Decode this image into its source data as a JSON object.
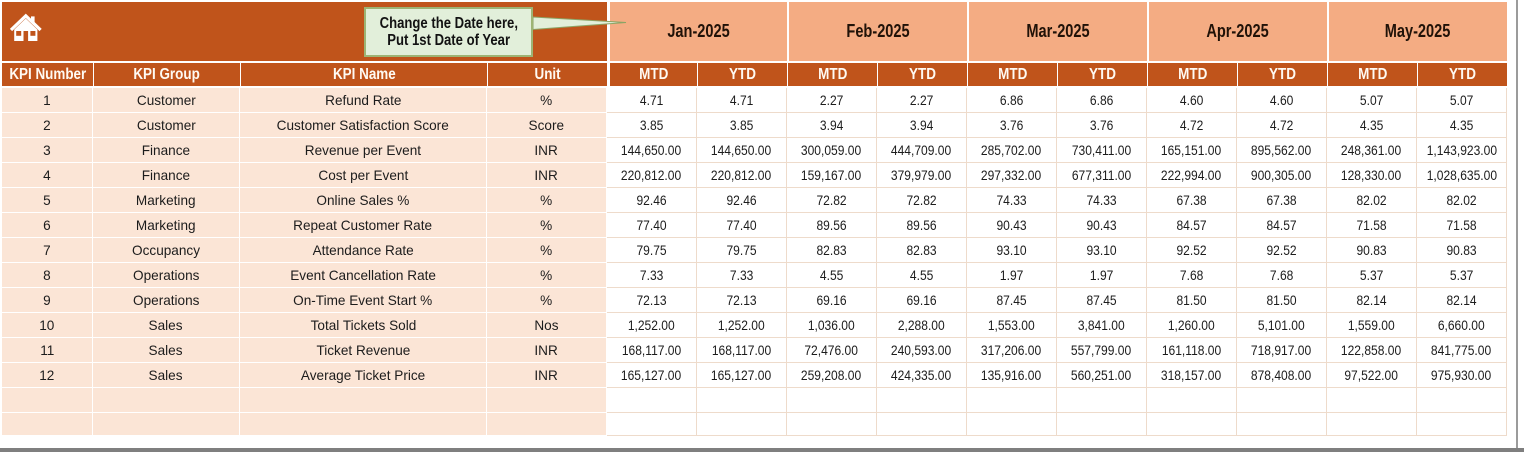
{
  "callout": {
    "line1": "Change the Date here,",
    "line2": "Put 1st Date of Year"
  },
  "header": {
    "kpi_number": "KPI Number",
    "kpi_group": "KPI Group",
    "kpi_name": "KPI Name",
    "unit": "Unit",
    "mtd": "MTD",
    "ytd": "YTD"
  },
  "months": [
    "Jan-2025",
    "Feb-2025",
    "Mar-2025",
    "Apr-2025",
    "May-2025"
  ],
  "icons": {
    "home": "home-icon"
  },
  "colors": {
    "dark_orange": "#C0541B",
    "salmon": "#F4AC83",
    "peach": "#FBE5D6",
    "callout_green": "#E2EFDA",
    "callout_border": "#9DB474",
    "grid_line": "#EEDBCB"
  },
  "rows": [
    {
      "number": "1",
      "group": "Customer",
      "name": "Refund Rate",
      "unit": "%",
      "values": [
        "4.71",
        "4.71",
        "2.27",
        "2.27",
        "6.86",
        "6.86",
        "4.60",
        "4.60",
        "5.07",
        "5.07"
      ]
    },
    {
      "number": "2",
      "group": "Customer",
      "name": "Customer Satisfaction Score",
      "unit": "Score",
      "values": [
        "3.85",
        "3.85",
        "3.94",
        "3.94",
        "3.76",
        "3.76",
        "4.72",
        "4.72",
        "4.35",
        "4.35"
      ]
    },
    {
      "number": "3",
      "group": "Finance",
      "name": "Revenue per Event",
      "unit": "INR",
      "values": [
        "144,650.00",
        "144,650.00",
        "300,059.00",
        "444,709.00",
        "285,702.00",
        "730,411.00",
        "165,151.00",
        "895,562.00",
        "248,361.00",
        "1,143,923.00"
      ]
    },
    {
      "number": "4",
      "group": "Finance",
      "name": "Cost per Event",
      "unit": "INR",
      "values": [
        "220,812.00",
        "220,812.00",
        "159,167.00",
        "379,979.00",
        "297,332.00",
        "677,311.00",
        "222,994.00",
        "900,305.00",
        "128,330.00",
        "1,028,635.00"
      ]
    },
    {
      "number": "5",
      "group": "Marketing",
      "name": "Online Sales %",
      "unit": "%",
      "values": [
        "92.46",
        "92.46",
        "72.82",
        "72.82",
        "74.33",
        "74.33",
        "67.38",
        "67.38",
        "82.02",
        "82.02"
      ]
    },
    {
      "number": "6",
      "group": "Marketing",
      "name": "Repeat Customer Rate",
      "unit": "%",
      "values": [
        "77.40",
        "77.40",
        "89.56",
        "89.56",
        "90.43",
        "90.43",
        "84.57",
        "84.57",
        "71.58",
        "71.58"
      ]
    },
    {
      "number": "7",
      "group": "Occupancy",
      "name": "Attendance Rate",
      "unit": "%",
      "values": [
        "79.75",
        "79.75",
        "82.83",
        "82.83",
        "93.10",
        "93.10",
        "92.52",
        "92.52",
        "90.83",
        "90.83"
      ]
    },
    {
      "number": "8",
      "group": "Operations",
      "name": "Event Cancellation Rate",
      "unit": "%",
      "values": [
        "7.33",
        "7.33",
        "4.55",
        "4.55",
        "1.97",
        "1.97",
        "7.68",
        "7.68",
        "5.37",
        "5.37"
      ]
    },
    {
      "number": "9",
      "group": "Operations",
      "name": "On-Time Event Start %",
      "unit": "%",
      "values": [
        "72.13",
        "72.13",
        "69.16",
        "69.16",
        "87.45",
        "87.45",
        "81.50",
        "81.50",
        "82.14",
        "82.14"
      ]
    },
    {
      "number": "10",
      "group": "Sales",
      "name": "Total Tickets Sold",
      "unit": "Nos",
      "values": [
        "1,252.00",
        "1,252.00",
        "1,036.00",
        "2,288.00",
        "1,553.00",
        "3,841.00",
        "1,260.00",
        "5,101.00",
        "1,559.00",
        "6,660.00"
      ]
    },
    {
      "number": "11",
      "group": "Sales",
      "name": "Ticket Revenue",
      "unit": "INR",
      "values": [
        "168,117.00",
        "168,117.00",
        "72,476.00",
        "240,593.00",
        "317,206.00",
        "557,799.00",
        "161,118.00",
        "718,917.00",
        "122,858.00",
        "841,775.00"
      ]
    },
    {
      "number": "12",
      "group": "Sales",
      "name": "Average Ticket Price",
      "unit": "INR",
      "values": [
        "165,127.00",
        "165,127.00",
        "259,208.00",
        "424,335.00",
        "135,916.00",
        "560,251.00",
        "318,157.00",
        "878,408.00",
        "97,522.00",
        "975,930.00"
      ]
    }
  ],
  "empty_row_count": 2
}
